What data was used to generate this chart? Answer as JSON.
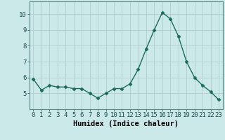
{
  "x": [
    0,
    1,
    2,
    3,
    4,
    5,
    6,
    7,
    8,
    9,
    10,
    11,
    12,
    13,
    14,
    15,
    16,
    17,
    18,
    19,
    20,
    21,
    22,
    23
  ],
  "y": [
    5.9,
    5.2,
    5.5,
    5.4,
    5.4,
    5.3,
    5.3,
    5.0,
    4.7,
    5.0,
    5.3,
    5.3,
    5.6,
    6.5,
    7.8,
    9.0,
    10.1,
    9.7,
    8.6,
    7.0,
    6.0,
    5.5,
    5.1,
    4.6
  ],
  "bg_color": "#cce9e9",
  "line_color": "#1a6b5a",
  "grid_color": "#b0cccc",
  "xlabel": "Humidex (Indice chaleur)",
  "ylim": [
    4.0,
    10.8
  ],
  "xlim": [
    -0.5,
    23.5
  ],
  "yticks": [
    5,
    6,
    7,
    8,
    9,
    10
  ],
  "xticks": [
    0,
    1,
    2,
    3,
    4,
    5,
    6,
    7,
    8,
    9,
    10,
    11,
    12,
    13,
    14,
    15,
    16,
    17,
    18,
    19,
    20,
    21,
    22,
    23
  ],
  "tick_fontsize": 6.5,
  "xlabel_fontsize": 7.5,
  "markersize": 2.5,
  "linewidth": 1.0
}
